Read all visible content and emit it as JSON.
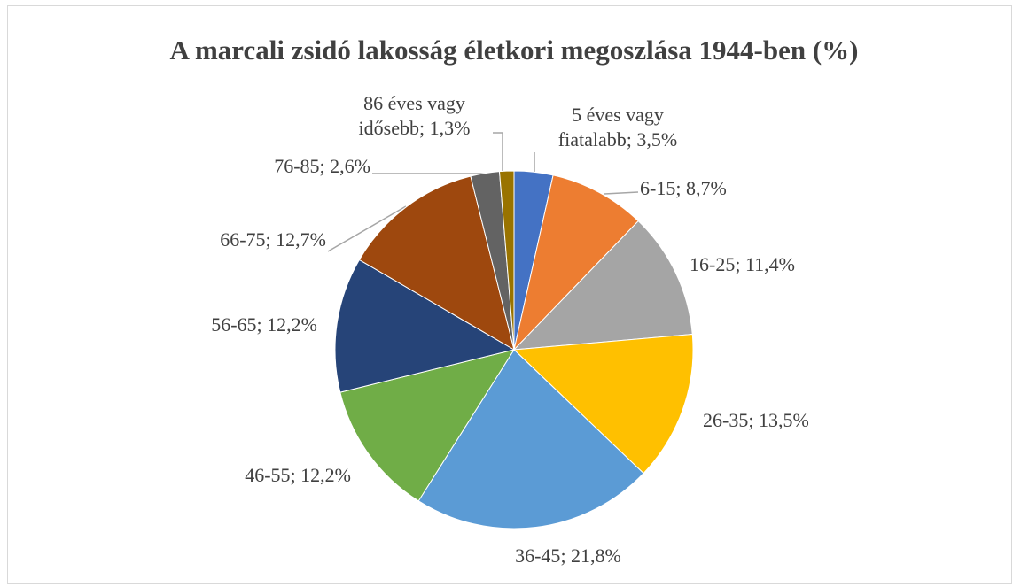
{
  "chart_data": {
    "type": "pie",
    "title": "A marcali zsidó lakosság életkori megoszlása 1944-ben (%)",
    "categories": [
      "5 éves vagy fiatalabb",
      "6-15",
      "16-25",
      "26-35",
      "36-45",
      "46-55",
      "56-65",
      "66-75",
      "76-85",
      "86 éves vagy idősebb"
    ],
    "values": [
      3.5,
      8.7,
      11.4,
      13.5,
      21.8,
      12.2,
      12.2,
      12.7,
      2.6,
      1.3
    ],
    "value_labels": [
      "; 3,5%",
      "; 8,7%",
      "; 11,4%",
      "; 13,5%",
      "; 21,8%",
      "; 12,2%",
      "; 12,2%",
      "; 12,7%",
      "; 2,6%",
      "; 1,3%"
    ],
    "colors": [
      "#4472c4",
      "#ed7d31",
      "#a5a5a5",
      "#ffc000",
      "#5b9bd5",
      "#70ad47",
      "#264478",
      "#9e480e",
      "#636363",
      "#997300"
    ]
  }
}
